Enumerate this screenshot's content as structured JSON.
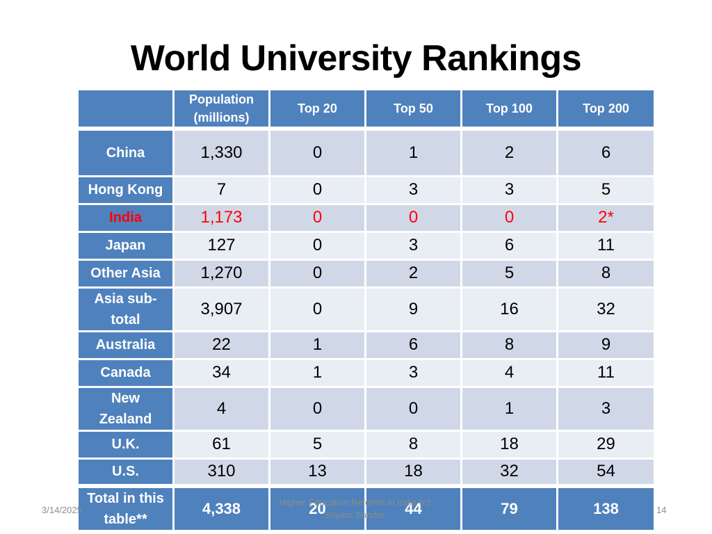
{
  "title": "World University Rankings",
  "columns": [
    "",
    "Population (millions)",
    "Top 20",
    "Top 50",
    "Top 100",
    "Top 200"
  ],
  "columns_pop_line1": "Population",
  "columns_pop_line2": "(millions)",
  "rows": [
    {
      "name": "China",
      "values": [
        "1,330",
        "0",
        "1",
        "2",
        "6"
      ]
    },
    {
      "name": "Hong Kong",
      "values": [
        "7",
        "0",
        "3",
        "3",
        "5"
      ]
    },
    {
      "name": "India",
      "values": [
        "1,173",
        "0",
        "0",
        "0",
        "2*"
      ],
      "highlight": true
    },
    {
      "name": "Japan",
      "values": [
        "127",
        "0",
        "3",
        "6",
        "11"
      ]
    },
    {
      "name": "Other Asia",
      "values": [
        "1,270",
        "0",
        "2",
        "5",
        "8"
      ]
    },
    {
      "name": "Asia sub-total",
      "name_line1": "Asia sub-",
      "name_line2": "total",
      "values": [
        "3,907",
        "0",
        "9",
        "16",
        "32"
      ]
    },
    {
      "name": "Australia",
      "values": [
        "22",
        "1",
        "6",
        "8",
        "9"
      ]
    },
    {
      "name": "Canada",
      "values": [
        "34",
        "1",
        "3",
        "4",
        "11"
      ]
    },
    {
      "name": "New Zealand",
      "name_line1": "New",
      "name_line2": "Zealand",
      "values": [
        "4",
        "0",
        "0",
        "1",
        "3"
      ]
    },
    {
      "name": "U.K.",
      "values": [
        "61",
        "5",
        "8",
        "18",
        "29"
      ]
    },
    {
      "name": "U.S.",
      "values": [
        "310",
        "13",
        "18",
        "32",
        "54"
      ]
    }
  ],
  "total": {
    "name_line1": "Total in this",
    "name_line2": "table**",
    "values": [
      "4,338",
      "20",
      "44",
      "79",
      "138"
    ]
  },
  "footer": {
    "date": "3/14/2025",
    "center_line1": "Higher Education Reforms in India (c)",
    "center_line2": "Shyam Sunder",
    "page": "14"
  },
  "colors": {
    "header_blue": "#4f81bd",
    "cell_dark": "#d0d8e8",
    "cell_light": "#e9edf4",
    "highlight_red": "#ff0000"
  }
}
